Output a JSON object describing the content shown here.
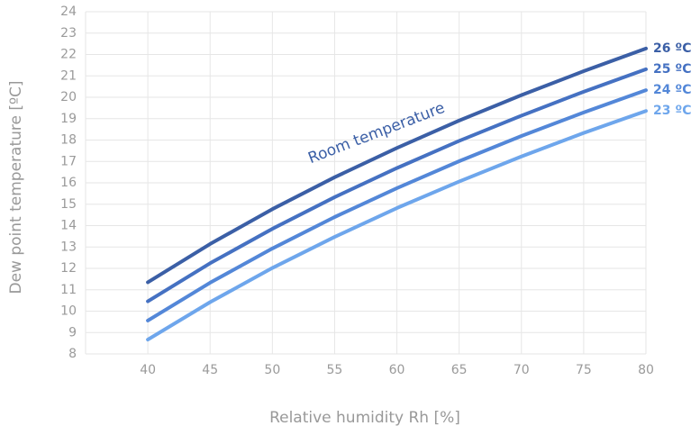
{
  "chart_data": {
    "type": "line",
    "x_label": "Relative humidity Rh [%]",
    "y_label": "Dew point temperature [ºC]",
    "annotation": "Room temperature",
    "x": [
      40,
      45,
      50,
      55,
      60,
      65,
      70,
      75,
      80
    ],
    "series": [
      {
        "name": "26 ºC",
        "color": "#3b5fa6",
        "values": [
          11.35,
          13.14,
          14.77,
          16.26,
          17.63,
          18.91,
          20.1,
          21.22,
          22.28
        ]
      },
      {
        "name": "25 ºC",
        "color": "#4571c2",
        "values": [
          10.46,
          12.24,
          13.85,
          15.33,
          16.69,
          17.96,
          19.14,
          20.26,
          21.31
        ]
      },
      {
        "name": "24 ºC",
        "color": "#5387d8",
        "values": [
          9.56,
          11.33,
          12.93,
          14.4,
          15.75,
          17.01,
          18.19,
          19.29,
          20.33
        ]
      },
      {
        "name": "23 ºC",
        "color": "#6ea6ec",
        "values": [
          8.67,
          10.42,
          12.02,
          13.47,
          14.82,
          16.06,
          17.23,
          18.33,
          19.36
        ]
      }
    ],
    "xlim": [
      35,
      80
    ],
    "xticks": [
      40,
      45,
      50,
      55,
      60,
      65,
      70,
      75,
      80
    ],
    "ylim": [
      8,
      24
    ],
    "yticks": [
      8,
      9,
      10,
      11,
      12,
      13,
      14,
      15,
      16,
      17,
      18,
      19,
      20,
      21,
      22,
      23,
      24
    ],
    "grid": true
  }
}
